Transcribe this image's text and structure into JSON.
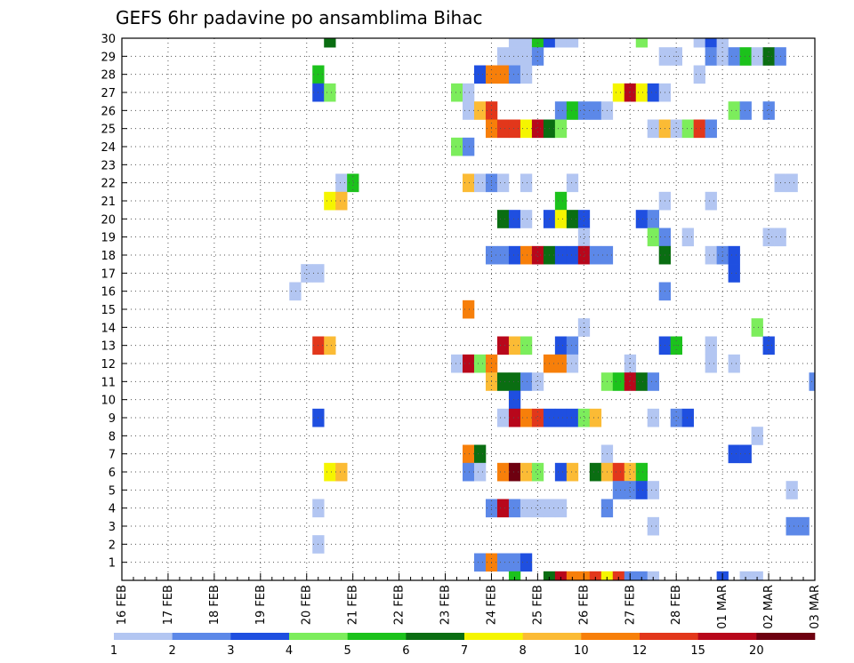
{
  "chart_data": {
    "type": "heatmap",
    "title": "GEFS 6hr padavine po ansamblima Bihac",
    "y_ticks": [
      "1",
      "2",
      "3",
      "4",
      "5",
      "6",
      "7",
      "8",
      "9",
      "10",
      "11",
      "12",
      "13",
      "14",
      "15",
      "16",
      "17",
      "18",
      "19",
      "20",
      "21",
      "22",
      "23",
      "24",
      "25",
      "26",
      "27",
      "28",
      "29",
      "30"
    ],
    "x_ticks": [
      "16 FEB",
      "17 FEB",
      "18 FEB",
      "19 FEB",
      "20 FEB",
      "21 FEB",
      "22 FEB",
      "23 FEB",
      "24 FEB",
      "25 FEB",
      "26 FEB",
      "27 FEB",
      "28 FEB",
      "01 MAR",
      "02 MAR",
      "03 MAR"
    ],
    "x_step_hours": 6,
    "xlim_steps": [
      0,
      60
    ],
    "ylim_members": [
      0,
      30
    ],
    "colorbar_labels": [
      "1",
      "2",
      "3",
      "4",
      "5",
      "6",
      "7",
      "8",
      "10",
      "12",
      "15",
      "20"
    ],
    "levels": [
      1,
      2,
      3,
      4,
      5,
      6,
      7,
      8,
      10,
      12,
      15,
      20
    ],
    "level_colors": [
      "#b3c6f2",
      "#5c88e8",
      "#1f4fe0",
      "#7ced5c",
      "#1cc21c",
      "#0a6e12",
      "#f5f500",
      "#fbbb35",
      "#f77f0a",
      "#e2371b",
      "#b8071b",
      "#6e0010"
    ],
    "cells": [
      [
        30,
        18,
        5
      ],
      [
        30,
        34,
        0
      ],
      [
        30,
        35,
        0
      ],
      [
        30,
        36,
        4
      ],
      [
        30,
        37,
        2
      ],
      [
        30,
        38,
        0
      ],
      [
        30,
        39,
        0
      ],
      [
        30,
        45,
        3
      ],
      [
        30,
        50,
        0
      ],
      [
        30,
        51,
        2
      ],
      [
        30,
        52,
        0
      ],
      [
        29,
        33,
        0
      ],
      [
        29,
        34,
        0
      ],
      [
        29,
        35,
        0
      ],
      [
        29,
        36,
        1
      ],
      [
        29,
        47,
        0
      ],
      [
        29,
        48,
        0
      ],
      [
        29,
        51,
        1
      ],
      [
        29,
        52,
        0
      ],
      [
        29,
        53,
        1
      ],
      [
        29,
        54,
        4
      ],
      [
        29,
        55,
        0
      ],
      [
        29,
        56,
        5
      ],
      [
        29,
        57,
        1
      ],
      [
        28,
        17,
        4
      ],
      [
        28,
        31,
        2
      ],
      [
        28,
        32,
        8
      ],
      [
        28,
        33,
        8
      ],
      [
        28,
        34,
        1
      ],
      [
        28,
        35,
        0
      ],
      [
        28,
        50,
        0
      ],
      [
        27,
        17,
        2
      ],
      [
        27,
        18,
        3
      ],
      [
        27,
        29,
        3
      ],
      [
        27,
        30,
        0
      ],
      [
        27,
        43,
        6
      ],
      [
        27,
        44,
        10
      ],
      [
        27,
        45,
        6
      ],
      [
        27,
        46,
        2
      ],
      [
        27,
        47,
        0
      ],
      [
        26,
        30,
        0
      ],
      [
        26,
        31,
        7
      ],
      [
        26,
        32,
        9
      ],
      [
        26,
        38,
        1
      ],
      [
        26,
        39,
        4
      ],
      [
        26,
        40,
        1
      ],
      [
        26,
        41,
        1
      ],
      [
        26,
        42,
        0
      ],
      [
        26,
        53,
        3
      ],
      [
        26,
        54,
        1
      ],
      [
        26,
        56,
        1
      ],
      [
        25,
        32,
        8
      ],
      [
        25,
        33,
        9
      ],
      [
        25,
        34,
        9
      ],
      [
        25,
        35,
        6
      ],
      [
        25,
        36,
        10
      ],
      [
        25,
        37,
        5
      ],
      [
        25,
        38,
        3
      ],
      [
        25,
        46,
        0
      ],
      [
        25,
        47,
        7
      ],
      [
        25,
        48,
        0
      ],
      [
        25,
        49,
        3
      ],
      [
        25,
        50,
        9
      ],
      [
        25,
        51,
        1
      ],
      [
        24,
        29,
        3
      ],
      [
        24,
        30,
        1
      ],
      [
        22,
        19,
        0
      ],
      [
        22,
        20,
        4
      ],
      [
        22,
        30,
        7
      ],
      [
        22,
        31,
        0
      ],
      [
        22,
        32,
        1
      ],
      [
        22,
        33,
        0
      ],
      [
        22,
        35,
        0
      ],
      [
        22,
        39,
        0
      ],
      [
        22,
        57,
        0
      ],
      [
        22,
        58,
        0
      ],
      [
        21,
        18,
        6
      ],
      [
        21,
        19,
        7
      ],
      [
        21,
        38,
        4
      ],
      [
        21,
        47,
        0
      ],
      [
        21,
        51,
        0
      ],
      [
        20,
        33,
        5
      ],
      [
        20,
        34,
        2
      ],
      [
        20,
        35,
        0
      ],
      [
        20,
        37,
        2
      ],
      [
        20,
        38,
        6
      ],
      [
        20,
        39,
        5
      ],
      [
        20,
        40,
        2
      ],
      [
        20,
        45,
        2
      ],
      [
        20,
        46,
        1
      ],
      [
        19,
        40,
        0
      ],
      [
        19,
        46,
        3
      ],
      [
        19,
        47,
        1
      ],
      [
        19,
        49,
        0
      ],
      [
        19,
        56,
        0
      ],
      [
        19,
        57,
        0
      ],
      [
        18,
        32,
        1
      ],
      [
        18,
        33,
        1
      ],
      [
        18,
        34,
        2
      ],
      [
        18,
        35,
        8
      ],
      [
        18,
        36,
        10
      ],
      [
        18,
        37,
        5
      ],
      [
        18,
        38,
        2
      ],
      [
        18,
        39,
        2
      ],
      [
        18,
        40,
        10
      ],
      [
        18,
        41,
        1
      ],
      [
        18,
        42,
        1
      ],
      [
        18,
        47,
        5
      ],
      [
        18,
        51,
        0
      ],
      [
        18,
        52,
        1
      ],
      [
        18,
        53,
        2
      ],
      [
        17,
        16,
        0
      ],
      [
        17,
        17,
        0
      ],
      [
        17,
        53,
        2
      ],
      [
        16,
        15,
        0
      ],
      [
        16,
        47,
        1
      ],
      [
        15,
        30,
        8
      ],
      [
        14,
        40,
        0
      ],
      [
        14,
        55,
        3
      ],
      [
        13,
        17,
        9
      ],
      [
        13,
        18,
        7
      ],
      [
        13,
        33,
        10
      ],
      [
        13,
        34,
        7
      ],
      [
        13,
        35,
        3
      ],
      [
        13,
        38,
        2
      ],
      [
        13,
        39,
        1
      ],
      [
        13,
        47,
        2
      ],
      [
        13,
        48,
        4
      ],
      [
        13,
        51,
        0
      ],
      [
        13,
        56,
        2
      ],
      [
        12,
        29,
        0
      ],
      [
        12,
        30,
        10
      ],
      [
        12,
        31,
        3
      ],
      [
        12,
        32,
        8
      ],
      [
        12,
        37,
        8
      ],
      [
        12,
        38,
        8
      ],
      [
        12,
        39,
        0
      ],
      [
        12,
        44,
        0
      ],
      [
        12,
        51,
        0
      ],
      [
        12,
        53,
        0
      ],
      [
        11,
        32,
        7
      ],
      [
        11,
        33,
        5
      ],
      [
        11,
        34,
        5
      ],
      [
        11,
        35,
        1
      ],
      [
        11,
        36,
        0
      ],
      [
        11,
        42,
        3
      ],
      [
        11,
        43,
        4
      ],
      [
        11,
        44,
        10
      ],
      [
        11,
        45,
        5
      ],
      [
        11,
        46,
        1
      ],
      [
        11,
        60,
        1
      ],
      [
        10,
        34,
        2
      ],
      [
        9,
        17,
        2
      ],
      [
        9,
        33,
        0
      ],
      [
        9,
        34,
        10
      ],
      [
        9,
        35,
        8
      ],
      [
        9,
        36,
        9
      ],
      [
        9,
        37,
        2
      ],
      [
        9,
        38,
        2
      ],
      [
        9,
        39,
        2
      ],
      [
        9,
        40,
        3
      ],
      [
        9,
        41,
        7
      ],
      [
        9,
        46,
        0
      ],
      [
        9,
        48,
        1
      ],
      [
        9,
        49,
        2
      ],
      [
        8,
        55,
        0
      ],
      [
        7,
        30,
        8
      ],
      [
        7,
        31,
        5
      ],
      [
        7,
        42,
        0
      ],
      [
        7,
        53,
        2
      ],
      [
        7,
        54,
        2
      ],
      [
        6,
        18,
        6
      ],
      [
        6,
        19,
        7
      ],
      [
        6,
        30,
        1
      ],
      [
        6,
        31,
        0
      ],
      [
        6,
        33,
        8
      ],
      [
        6,
        34,
        11
      ],
      [
        6,
        35,
        7
      ],
      [
        6,
        36,
        3
      ],
      [
        6,
        38,
        2
      ],
      [
        6,
        39,
        7
      ],
      [
        6,
        41,
        5
      ],
      [
        6,
        42,
        7
      ],
      [
        6,
        43,
        9
      ],
      [
        6,
        44,
        7
      ],
      [
        6,
        45,
        4
      ],
      [
        5,
        43,
        1
      ],
      [
        5,
        44,
        1
      ],
      [
        5,
        45,
        2
      ],
      [
        5,
        46,
        0
      ],
      [
        5,
        58,
        0
      ],
      [
        4,
        17,
        0
      ],
      [
        4,
        32,
        1
      ],
      [
        4,
        33,
        10
      ],
      [
        4,
        34,
        1
      ],
      [
        4,
        35,
        0
      ],
      [
        4,
        36,
        0
      ],
      [
        4,
        37,
        0
      ],
      [
        4,
        38,
        0
      ],
      [
        4,
        42,
        1
      ],
      [
        3,
        46,
        0
      ],
      [
        3,
        58,
        1
      ],
      [
        3,
        59,
        1
      ],
      [
        2,
        17,
        0
      ],
      [
        1,
        31,
        1
      ],
      [
        1,
        32,
        8
      ],
      [
        1,
        33,
        1
      ],
      [
        1,
        34,
        1
      ],
      [
        1,
        35,
        2
      ],
      [
        0,
        34,
        4
      ],
      [
        0,
        37,
        5
      ],
      [
        0,
        38,
        10
      ],
      [
        0,
        39,
        8
      ],
      [
        0,
        40,
        8
      ],
      [
        0,
        41,
        9
      ],
      [
        0,
        42,
        6
      ],
      [
        0,
        43,
        9
      ],
      [
        0,
        44,
        1
      ],
      [
        0,
        45,
        1
      ],
      [
        0,
        46,
        0
      ],
      [
        0,
        52,
        2
      ],
      [
        0,
        54,
        0
      ],
      [
        0,
        55,
        0
      ]
    ]
  }
}
